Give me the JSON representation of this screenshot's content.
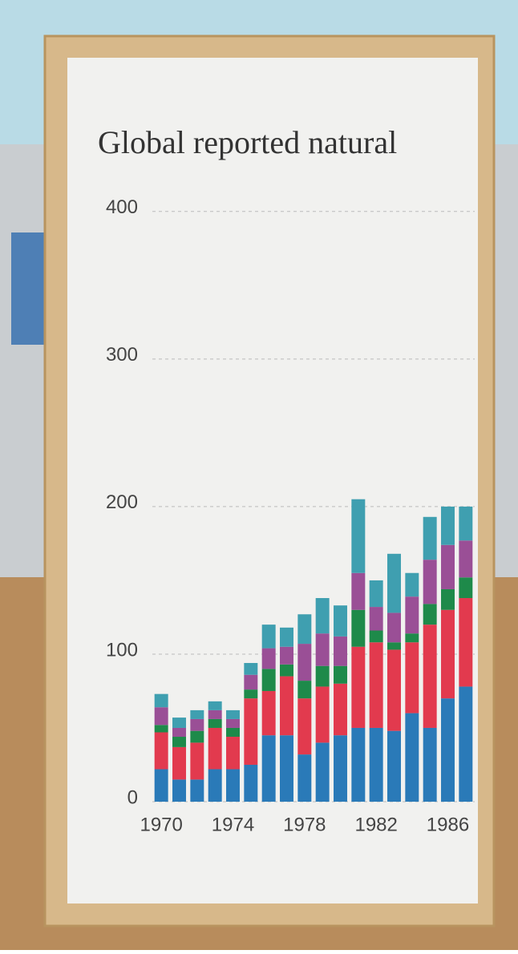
{
  "chart_data": {
    "type": "stacked-bar",
    "title": "Global reported natural",
    "categories": [
      "1970",
      null,
      null,
      null,
      "1974",
      null,
      null,
      null,
      "1978",
      null,
      null,
      null,
      "1982",
      null,
      null,
      null,
      "1986",
      null
    ],
    "series": [
      {
        "color": "#2a7ab8",
        "values": [
          22,
          15,
          15,
          22,
          22,
          25,
          45,
          45,
          32,
          40,
          45,
          50,
          50,
          48,
          60,
          50,
          70,
          78
        ]
      },
      {
        "color": "#e23a4e",
        "values": [
          25,
          22,
          25,
          28,
          22,
          45,
          30,
          40,
          38,
          38,
          35,
          55,
          58,
          55,
          48,
          70,
          60,
          60
        ]
      },
      {
        "color": "#1e8a4a",
        "values": [
          5,
          7,
          8,
          6,
          6,
          6,
          15,
          8,
          12,
          14,
          12,
          25,
          8,
          5,
          6,
          14,
          14,
          14
        ]
      },
      {
        "color": "#9a4f96",
        "values": [
          12,
          6,
          8,
          6,
          6,
          10,
          14,
          12,
          25,
          22,
          20,
          25,
          16,
          20,
          25,
          30,
          30,
          25
        ]
      },
      {
        "color": "#3f9fb0",
        "values": [
          9,
          7,
          6,
          6,
          6,
          8,
          16,
          13,
          20,
          24,
          21,
          50,
          18,
          40,
          16,
          29,
          26,
          23
        ]
      }
    ],
    "ylim": [
      0,
      420
    ],
    "yticks": [
      0,
      100,
      200,
      300,
      400
    ],
    "grid": true
  }
}
